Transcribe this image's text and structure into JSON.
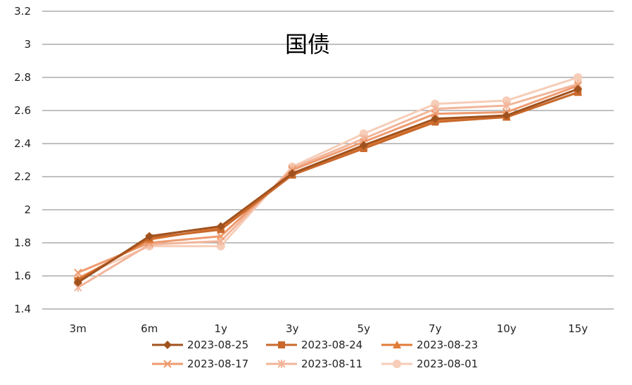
{
  "chart_data": {
    "type": "line",
    "title": "国债",
    "xlabel": "",
    "ylabel": "",
    "categories": [
      "3m",
      "6m",
      "1y",
      "3y",
      "5y",
      "7y",
      "10y",
      "15y"
    ],
    "ylim": [
      1.4,
      3.2
    ],
    "yticks": [
      "1.4",
      "1.6",
      "1.8",
      "2",
      "2.2",
      "2.4",
      "2.6",
      "2.8",
      "3",
      "3.2"
    ],
    "grid": true,
    "legend_position": "bottom",
    "series": [
      {
        "name": "2023-08-25",
        "color": "#a0521e",
        "marker": "diamond",
        "values": [
          1.56,
          1.84,
          1.9,
          2.22,
          2.39,
          2.55,
          2.57,
          2.73
        ]
      },
      {
        "name": "2023-08-24",
        "color": "#c9692c",
        "marker": "square",
        "values": [
          1.57,
          1.83,
          1.88,
          2.21,
          2.37,
          2.53,
          2.56,
          2.71
        ]
      },
      {
        "name": "2023-08-23",
        "color": "#e07b38",
        "marker": "triangle",
        "values": [
          1.58,
          1.82,
          1.89,
          2.21,
          2.38,
          2.54,
          2.56,
          2.71
        ]
      },
      {
        "name": "2023-08-17",
        "color": "#ee9a6f",
        "marker": "x",
        "values": [
          1.62,
          1.8,
          1.84,
          2.24,
          2.41,
          2.58,
          2.59,
          2.75
        ]
      },
      {
        "name": "2023-08-11",
        "color": "#f2b59a",
        "marker": "star",
        "values": [
          1.53,
          1.79,
          1.81,
          2.25,
          2.43,
          2.61,
          2.63,
          2.76
        ]
      },
      {
        "name": "2023-08-01",
        "color": "#f6cdb8",
        "marker": "circle",
        "values": [
          1.59,
          1.78,
          1.78,
          2.26,
          2.46,
          2.64,
          2.66,
          2.8
        ]
      }
    ]
  }
}
